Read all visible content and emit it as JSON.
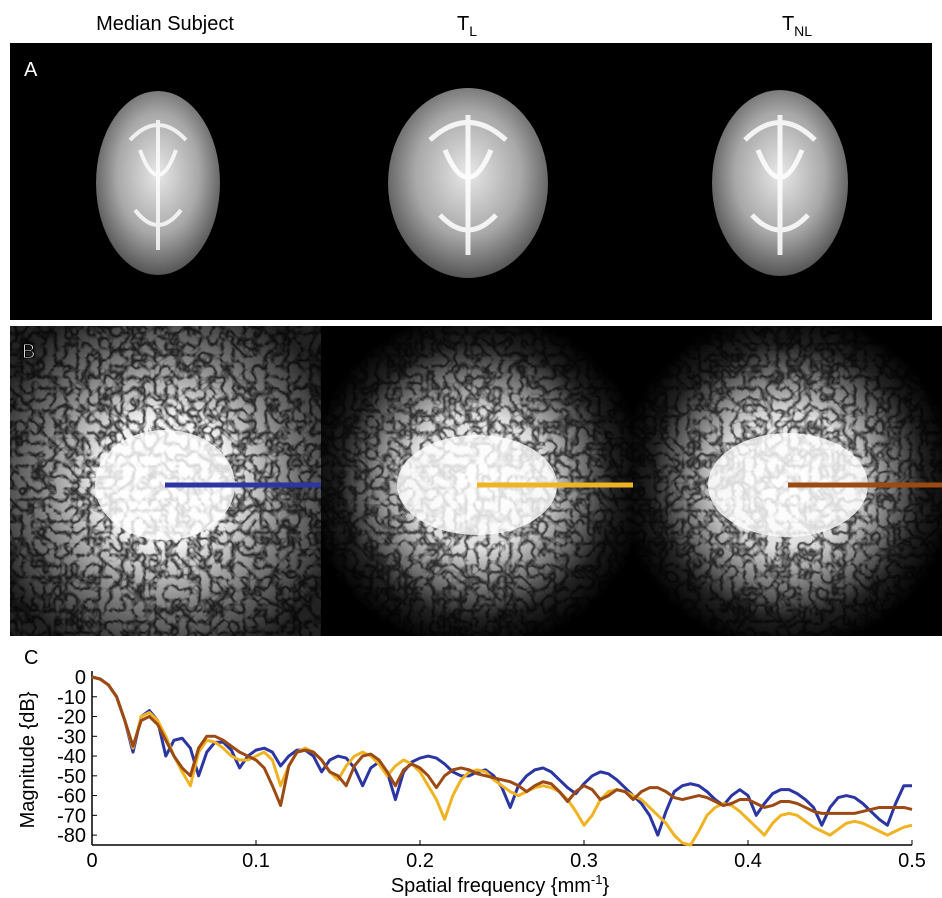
{
  "column_titles": [
    {
      "text": "Median Subject"
    },
    {
      "text": "T",
      "sub": "L"
    },
    {
      "text": "T",
      "sub": "NL"
    }
  ],
  "panel_labels": [
    "A",
    "B",
    "C"
  ],
  "chart_data": {
    "type": "line",
    "ylabel": "Magnitude {dB}",
    "xlabel": {
      "text": "Spatial frequency {mm",
      "sup": "-1",
      "end": "}"
    },
    "xlim": [
      0,
      0.5
    ],
    "xticks": [
      0,
      0.1,
      0.2,
      0.3,
      0.4,
      0.5
    ],
    "ylim": [
      -85,
      0
    ],
    "yticks": [
      0,
      -10,
      -20,
      -30,
      -40,
      -50,
      -60,
      -70,
      -80
    ],
    "x": [
      0,
      0.005,
      0.01,
      0.015,
      0.02,
      0.025,
      0.03,
      0.035,
      0.04,
      0.045,
      0.05,
      0.055,
      0.06,
      0.065,
      0.07,
      0.075,
      0.08,
      0.085,
      0.09,
      0.095,
      0.1,
      0.105,
      0.11,
      0.115,
      0.12,
      0.125,
      0.13,
      0.135,
      0.14,
      0.145,
      0.15,
      0.155,
      0.16,
      0.165,
      0.17,
      0.175,
      0.18,
      0.185,
      0.19,
      0.195,
      0.2,
      0.205,
      0.21,
      0.215,
      0.22,
      0.225,
      0.23,
      0.235,
      0.24,
      0.245,
      0.25,
      0.255,
      0.26,
      0.265,
      0.27,
      0.275,
      0.28,
      0.285,
      0.29,
      0.295,
      0.3,
      0.305,
      0.31,
      0.315,
      0.32,
      0.325,
      0.33,
      0.335,
      0.34,
      0.345,
      0.35,
      0.355,
      0.36,
      0.365,
      0.37,
      0.375,
      0.38,
      0.385,
      0.39,
      0.395,
      0.4,
      0.405,
      0.41,
      0.415,
      0.42,
      0.425,
      0.43,
      0.435,
      0.44,
      0.445,
      0.45,
      0.455,
      0.46,
      0.465,
      0.47,
      0.475,
      0.48,
      0.485,
      0.49,
      0.495,
      0.5
    ],
    "series": [
      {
        "color": "#2b36a3",
        "values": [
          0,
          -1,
          -4,
          -10,
          -22,
          -38,
          -20,
          -17,
          -22,
          -40,
          -32,
          -31,
          -36,
          -50,
          -38,
          -33,
          -33,
          -37,
          -46,
          -40,
          -37,
          -36,
          -38,
          -45,
          -40,
          -37,
          -37,
          -40,
          -48,
          -42,
          -40,
          -41,
          -46,
          -55,
          -46,
          -43,
          -48,
          -62,
          -48,
          -43,
          -41,
          -40,
          -41,
          -44,
          -48,
          -50,
          -50,
          -48,
          -47,
          -50,
          -56,
          -66,
          -55,
          -50,
          -47,
          -46,
          -48,
          -52,
          -56,
          -59,
          -54,
          -50,
          -48,
          -49,
          -52,
          -56,
          -60,
          -64,
          -70,
          -80,
          -68,
          -58,
          -55,
          -54,
          -55,
          -58,
          -62,
          -65,
          -60,
          -57,
          -60,
          -70,
          -64,
          -59,
          -57,
          -57,
          -59,
          -62,
          -66,
          -75,
          -66,
          -61,
          -60,
          -61,
          -64,
          -68,
          -72,
          -75,
          -64,
          -55,
          -55
        ]
      },
      {
        "color": "#f0b323",
        "values": [
          0,
          -1,
          -4,
          -10,
          -22,
          -36,
          -20,
          -18,
          -22,
          -30,
          -40,
          -48,
          -55,
          -38,
          -32,
          -33,
          -36,
          -40,
          -42,
          -42,
          -40,
          -38,
          -42,
          -55,
          -45,
          -38,
          -36,
          -38,
          -42,
          -48,
          -52,
          -45,
          -40,
          -38,
          -40,
          -44,
          -50,
          -45,
          -42,
          -44,
          -48,
          -55,
          -62,
          -72,
          -60,
          -52,
          -48,
          -47,
          -48,
          -52,
          -55,
          -58,
          -60,
          -58,
          -56,
          -55,
          -56,
          -58,
          -62,
          -68,
          -75,
          -70,
          -62,
          -58,
          -57,
          -58,
          -60,
          -62,
          -66,
          -70,
          -74,
          -80,
          -84,
          -85,
          -78,
          -70,
          -66,
          -64,
          -65,
          -68,
          -72,
          -76,
          -80,
          -74,
          -70,
          -69,
          -70,
          -73,
          -76,
          -78,
          -80,
          -77,
          -74,
          -73,
          -74,
          -76,
          -78,
          -80,
          -78,
          -76,
          -75
        ]
      },
      {
        "color": "#9b4a14",
        "values": [
          0,
          -1,
          -4,
          -10,
          -22,
          -35,
          -22,
          -20,
          -24,
          -32,
          -40,
          -46,
          -50,
          -36,
          -30,
          -30,
          -32,
          -35,
          -38,
          -40,
          -42,
          -46,
          -55,
          -65,
          -45,
          -38,
          -37,
          -38,
          -42,
          -48,
          -50,
          -55,
          -45,
          -40,
          -39,
          -42,
          -48,
          -55,
          -47,
          -44,
          -46,
          -50,
          -56,
          -50,
          -47,
          -46,
          -47,
          -49,
          -50,
          -51,
          -52,
          -53,
          -55,
          -58,
          -55,
          -53,
          -54,
          -58,
          -63,
          -58,
          -55,
          -57,
          -62,
          -60,
          -57,
          -58,
          -62,
          -58,
          -56,
          -56,
          -58,
          -61,
          -62,
          -61,
          -60,
          -61,
          -63,
          -65,
          -64,
          -62,
          -62,
          -64,
          -66,
          -65,
          -63,
          -63,
          -64,
          -66,
          -68,
          -69,
          -69,
          -69,
          -69,
          -69,
          -68,
          -67,
          -66,
          -66,
          -66,
          -66,
          -67
        ]
      }
    ]
  }
}
